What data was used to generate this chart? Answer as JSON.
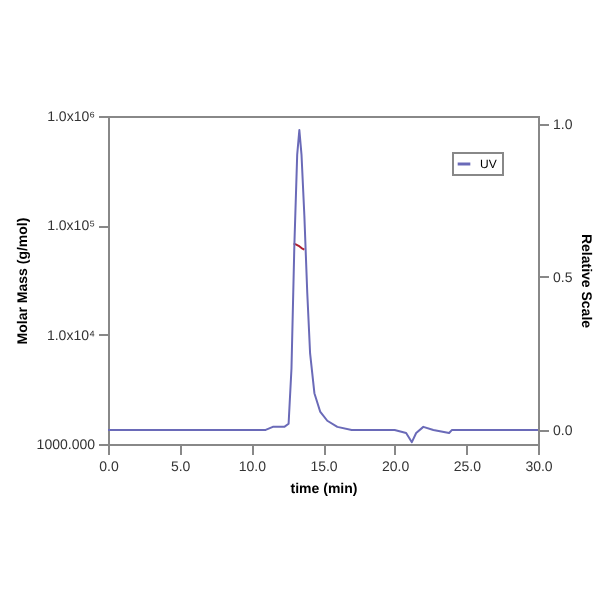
{
  "chart_data": {
    "type": "line",
    "xlabel": "time (min)",
    "ylabel": "Molar Mass (g/mol)",
    "y2label": "Relative Scale",
    "xlim": [
      0,
      30
    ],
    "xticks": [
      {
        "value": 0,
        "label": "0.0"
      },
      {
        "value": 5,
        "label": "5.0"
      },
      {
        "value": 10,
        "label": "10.0"
      },
      {
        "value": 15,
        "label": "15.0"
      },
      {
        "value": 20,
        "label": "20.0"
      },
      {
        "value": 25,
        "label": "25.0"
      },
      {
        "value": 30,
        "label": "30.0"
      }
    ],
    "ylim": [
      1000,
      1000000
    ],
    "yticks": [
      {
        "value": 1000,
        "label": "1000.000"
      },
      {
        "value": 10000,
        "label": "1.0x10⁴"
      },
      {
        "value": 100000,
        "label": "1.0x10⁵"
      },
      {
        "value": 1000000,
        "label": "1.0x10⁶"
      }
    ],
    "y2lim": [
      -0.046,
      1.026
    ],
    "y2ticks": [
      {
        "value": 0,
        "label": "0.0"
      },
      {
        "value": 0.5,
        "label": "0.5"
      },
      {
        "value": 1,
        "label": "1.0"
      }
    ],
    "log": "y",
    "legend": "top right",
    "series": [
      {
        "color": "#b02030",
        "axis": "y",
        "x": [
          12.95,
          13.1,
          13.3,
          13.5,
          13.7
        ],
        "values": [
          68000,
          67000,
          65000,
          62000,
          60000
        ]
      },
      {
        "name": "UV",
        "color": "#6a6ab8",
        "axis": "y2",
        "x": [
          0,
          5,
          10,
          11,
          11.5,
          12.3,
          12.6,
          12.8,
          13.0,
          13.2,
          13.35,
          13.5,
          13.7,
          13.9,
          14.1,
          14.4,
          14.8,
          15.3,
          16,
          17,
          20,
          20.8,
          21.2,
          21.5,
          22,
          22.7,
          23.8,
          24,
          30
        ],
        "values": [
          0,
          0,
          0,
          0,
          0.01,
          0.01,
          0.02,
          0.2,
          0.6,
          0.9,
          0.98,
          0.9,
          0.7,
          0.45,
          0.25,
          0.12,
          0.06,
          0.03,
          0.01,
          0,
          0,
          -0.01,
          -0.04,
          -0.01,
          0.01,
          0,
          -0.01,
          0,
          0
        ]
      }
    ]
  }
}
